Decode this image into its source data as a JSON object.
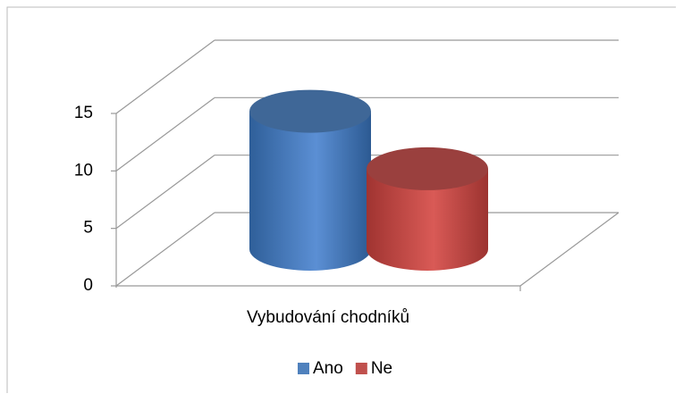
{
  "chart_data": {
    "type": "bar3d",
    "categories": [
      "Vybudování chodníků"
    ],
    "series": [
      {
        "name": "Ano",
        "color": "#4f81bd",
        "values": [
          12
        ]
      },
      {
        "name": "Ne",
        "color": "#c0504d",
        "values": [
          7
        ]
      }
    ],
    "ylim": [
      0,
      15
    ],
    "yticks": [
      0,
      5,
      10,
      15
    ],
    "grid": true,
    "legend": "bottom"
  }
}
